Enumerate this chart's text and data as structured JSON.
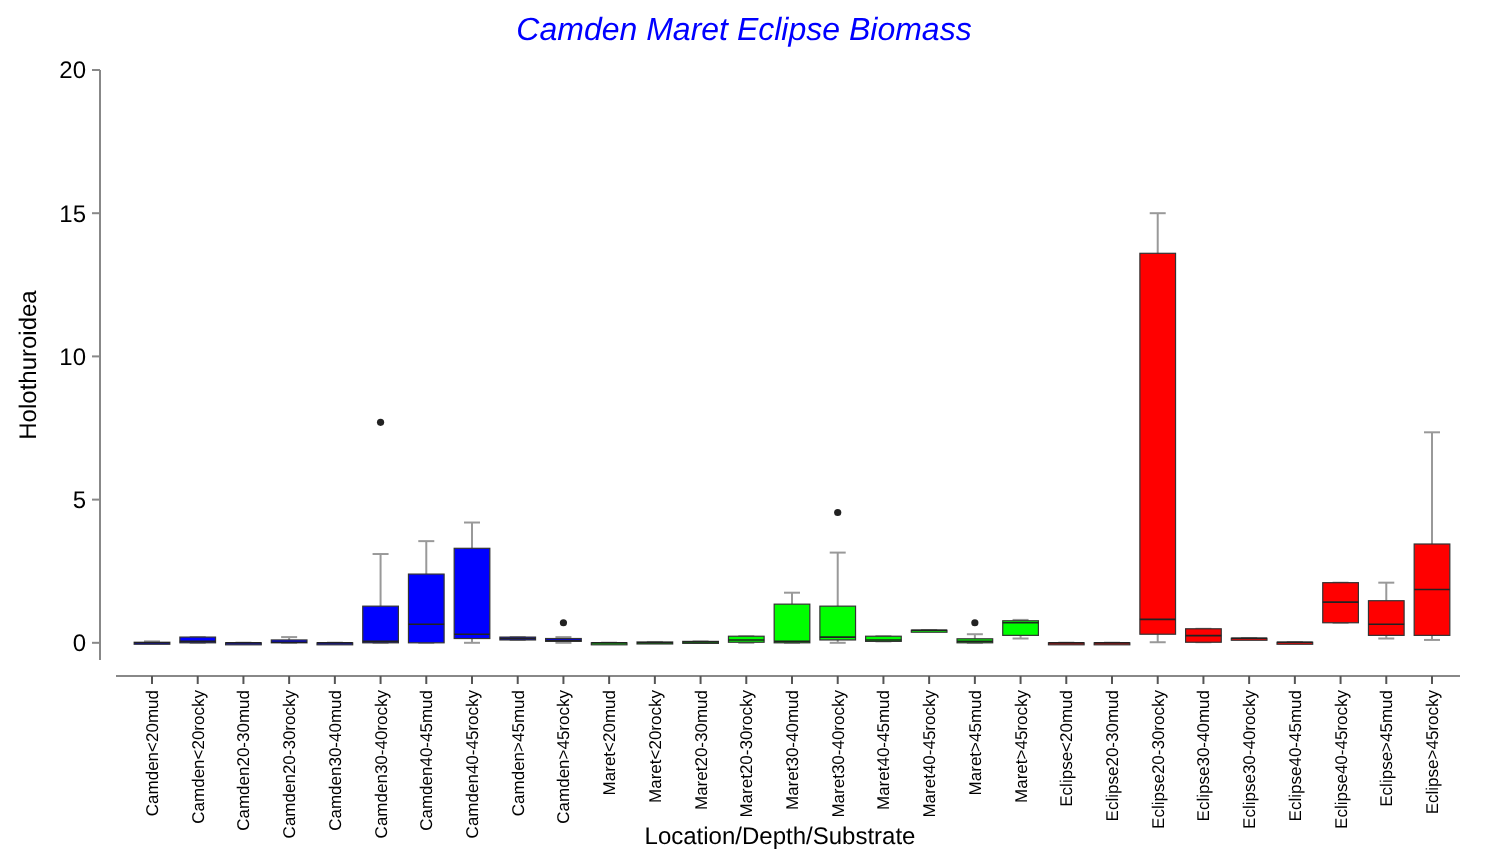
{
  "chart_data": {
    "type": "box",
    "title": "Camden Maret Eclipse Biomass",
    "xlabel": "Location/Depth/Substrate",
    "ylabel": "Holothuroidea",
    "categories": [
      "Camden<20mud",
      "Camden<20rocky",
      "Camden20-30mud",
      "Camden20-30rocky",
      "Camden30-40mud",
      "Camden30-40rocky",
      "Camden40-45mud",
      "Camden40-45rocky",
      "Camden>45mud",
      "Camden>45rocky",
      "Maret<20mud",
      "Maret<20rocky",
      "Maret20-30mud",
      "Maret20-30rocky",
      "Maret30-40mud",
      "Maret30-40rocky",
      "Maret40-45mud",
      "Maret40-45rocky",
      "Maret>45mud",
      "Maret>45rocky",
      "Eclipse<20mud",
      "Eclipse20-30mud",
      "Eclipse20-30rocky",
      "Eclipse30-40mud",
      "Eclipse30-40rocky",
      "Eclipse40-45mud",
      "Eclipse40-45rocky",
      "Eclipse>45mud",
      "Eclipse>45rocky"
    ],
    "colors": [
      "#0000ff",
      "#0000ff",
      "#0000ff",
      "#0000ff",
      "#0000ff",
      "#0000ff",
      "#0000ff",
      "#0000ff",
      "#0000ff",
      "#0000ff",
      "#00ff00",
      "#00ff00",
      "#00ff00",
      "#00ff00",
      "#00ff00",
      "#00ff00",
      "#00ff00",
      "#00ff00",
      "#00ff00",
      "#00ff00",
      "#ff0000",
      "#ff0000",
      "#ff0000",
      "#ff0000",
      "#ff0000",
      "#ff0000",
      "#ff0000",
      "#ff0000",
      "#ff0000"
    ],
    "boxes": [
      {
        "low": 0,
        "q1": 0,
        "median": 0,
        "q3": 0.02,
        "high": 0.05
      },
      {
        "low": 0,
        "q1": 0,
        "median": 0.05,
        "q3": 0.2,
        "high": 0.2
      },
      {
        "low": 0,
        "q1": 0,
        "median": 0,
        "q3": 0,
        "high": 0
      },
      {
        "low": 0,
        "q1": 0,
        "median": 0.02,
        "q3": 0.1,
        "high": 0.2
      },
      {
        "low": 0,
        "q1": 0,
        "median": 0,
        "q3": 0,
        "high": 0
      },
      {
        "low": 0,
        "q1": 0,
        "median": 0.05,
        "q3": 1.28,
        "high": 3.1,
        "outliers": [
          7.7
        ]
      },
      {
        "low": 0,
        "q1": 0,
        "median": 0.65,
        "q3": 2.4,
        "high": 3.55
      },
      {
        "low": 0,
        "q1": 0.15,
        "median": 0.3,
        "q3": 3.3,
        "high": 4.2
      },
      {
        "low": 0.1,
        "q1": 0.1,
        "median": 0.15,
        "q3": 0.2,
        "high": 0.2
      },
      {
        "low": 0,
        "q1": 0.05,
        "median": 0.08,
        "q3": 0.15,
        "high": 0.2,
        "outliers": [
          0.7
        ]
      },
      {
        "low": 0,
        "q1": 0,
        "median": 0,
        "q3": 0,
        "high": 0
      },
      {
        "low": 0,
        "q1": 0,
        "median": 0,
        "q3": 0.03,
        "high": 0.03
      },
      {
        "low": 0,
        "q1": 0,
        "median": 0.03,
        "q3": 0.05,
        "high": 0.05
      },
      {
        "low": 0,
        "q1": 0.02,
        "median": 0.1,
        "q3": 0.23,
        "high": 0.23
      },
      {
        "low": 0,
        "q1": 0,
        "median": 0.05,
        "q3": 1.35,
        "high": 1.75
      },
      {
        "low": 0,
        "q1": 0.1,
        "median": 0.2,
        "q3": 1.28,
        "high": 3.15,
        "outliers": [
          4.55
        ]
      },
      {
        "low": 0.05,
        "q1": 0.05,
        "median": 0.1,
        "q3": 0.23,
        "high": 0.23
      },
      {
        "low": 0.44,
        "q1": 0.44,
        "median": 0.44,
        "q3": 0.44,
        "high": 0.44
      },
      {
        "low": 0,
        "q1": 0,
        "median": 0.05,
        "q3": 0.14,
        "high": 0.3,
        "outliers": [
          0.7
        ]
      },
      {
        "low": 0.15,
        "q1": 0.26,
        "median": 0.7,
        "q3": 0.77,
        "high": 0.8
      },
      {
        "low": 0,
        "q1": 0,
        "median": 0,
        "q3": 0,
        "high": 0
      },
      {
        "low": 0,
        "q1": 0,
        "median": 0,
        "q3": 0,
        "high": 0
      },
      {
        "low": 0.02,
        "q1": 0.3,
        "median": 0.82,
        "q3": 13.6,
        "high": 15
      },
      {
        "low": 0.02,
        "q1": 0.02,
        "median": 0.25,
        "q3": 0.49,
        "high": 0.49
      },
      {
        "low": 0.16,
        "q1": 0.16,
        "median": 0.16,
        "q3": 0.16,
        "high": 0.16
      },
      {
        "low": 0.02,
        "q1": 0.02,
        "median": 0.02,
        "q3": 0.02,
        "high": 0.02
      },
      {
        "low": 0.7,
        "q1": 0.7,
        "median": 1.42,
        "q3": 2.1,
        "high": 2.1
      },
      {
        "low": 0.15,
        "q1": 0.26,
        "median": 0.65,
        "q3": 1.47,
        "high": 2.1
      },
      {
        "low": 0.1,
        "q1": 0.26,
        "median": 1.86,
        "q3": 3.45,
        "high": 7.35
      }
    ],
    "ylim": [
      -0.6,
      20
    ],
    "yticks": [
      0,
      5,
      10,
      15,
      20
    ]
  }
}
